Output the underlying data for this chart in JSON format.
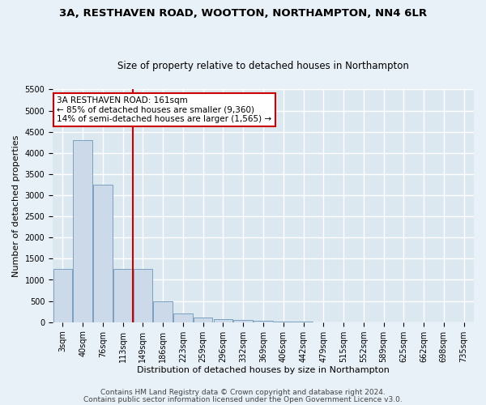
{
  "title1": "3A, RESTHAVEN ROAD, WOOTTON, NORTHAMPTON, NN4 6LR",
  "title2": "Size of property relative to detached houses in Northampton",
  "xlabel": "Distribution of detached houses by size in Northampton",
  "ylabel": "Number of detached properties",
  "footer1": "Contains HM Land Registry data © Crown copyright and database right 2024.",
  "footer2": "Contains public sector information licensed under the Open Government Licence v3.0.",
  "annotation_title": "3A RESTHAVEN ROAD: 161sqm",
  "annotation_line1": "← 85% of detached houses are smaller (9,360)",
  "annotation_line2": "14% of semi-detached houses are larger (1,565) →",
  "bar_color": "#ccd9e8",
  "bar_edge_color": "#7aa0c0",
  "vline_color": "#cc0000",
  "background_color": "#dce8f0",
  "fig_background_color": "#e8f0f8",
  "grid_color": "#ffffff",
  "categories": [
    "3sqm",
    "40sqm",
    "76sqm",
    "113sqm",
    "149sqm",
    "186sqm",
    "223sqm",
    "259sqm",
    "296sqm",
    "332sqm",
    "369sqm",
    "406sqm",
    "442sqm",
    "479sqm",
    "515sqm",
    "552sqm",
    "589sqm",
    "625sqm",
    "662sqm",
    "698sqm",
    "735sqm"
  ],
  "values": [
    1250,
    4300,
    3250,
    1250,
    1250,
    500,
    200,
    100,
    75,
    50,
    25,
    15,
    5,
    3,
    2,
    1,
    0,
    0,
    0,
    0,
    0
  ],
  "ylim": [
    0,
    5500
  ],
  "yticks": [
    0,
    500,
    1000,
    1500,
    2000,
    2500,
    3000,
    3500,
    4000,
    4500,
    5000,
    5500
  ],
  "vline_x": 3.5,
  "title_fontsize": 9.5,
  "subtitle_fontsize": 8.5,
  "axis_label_fontsize": 8,
  "tick_fontsize": 7,
  "annotation_fontsize": 7.5,
  "footer_fontsize": 6.5
}
